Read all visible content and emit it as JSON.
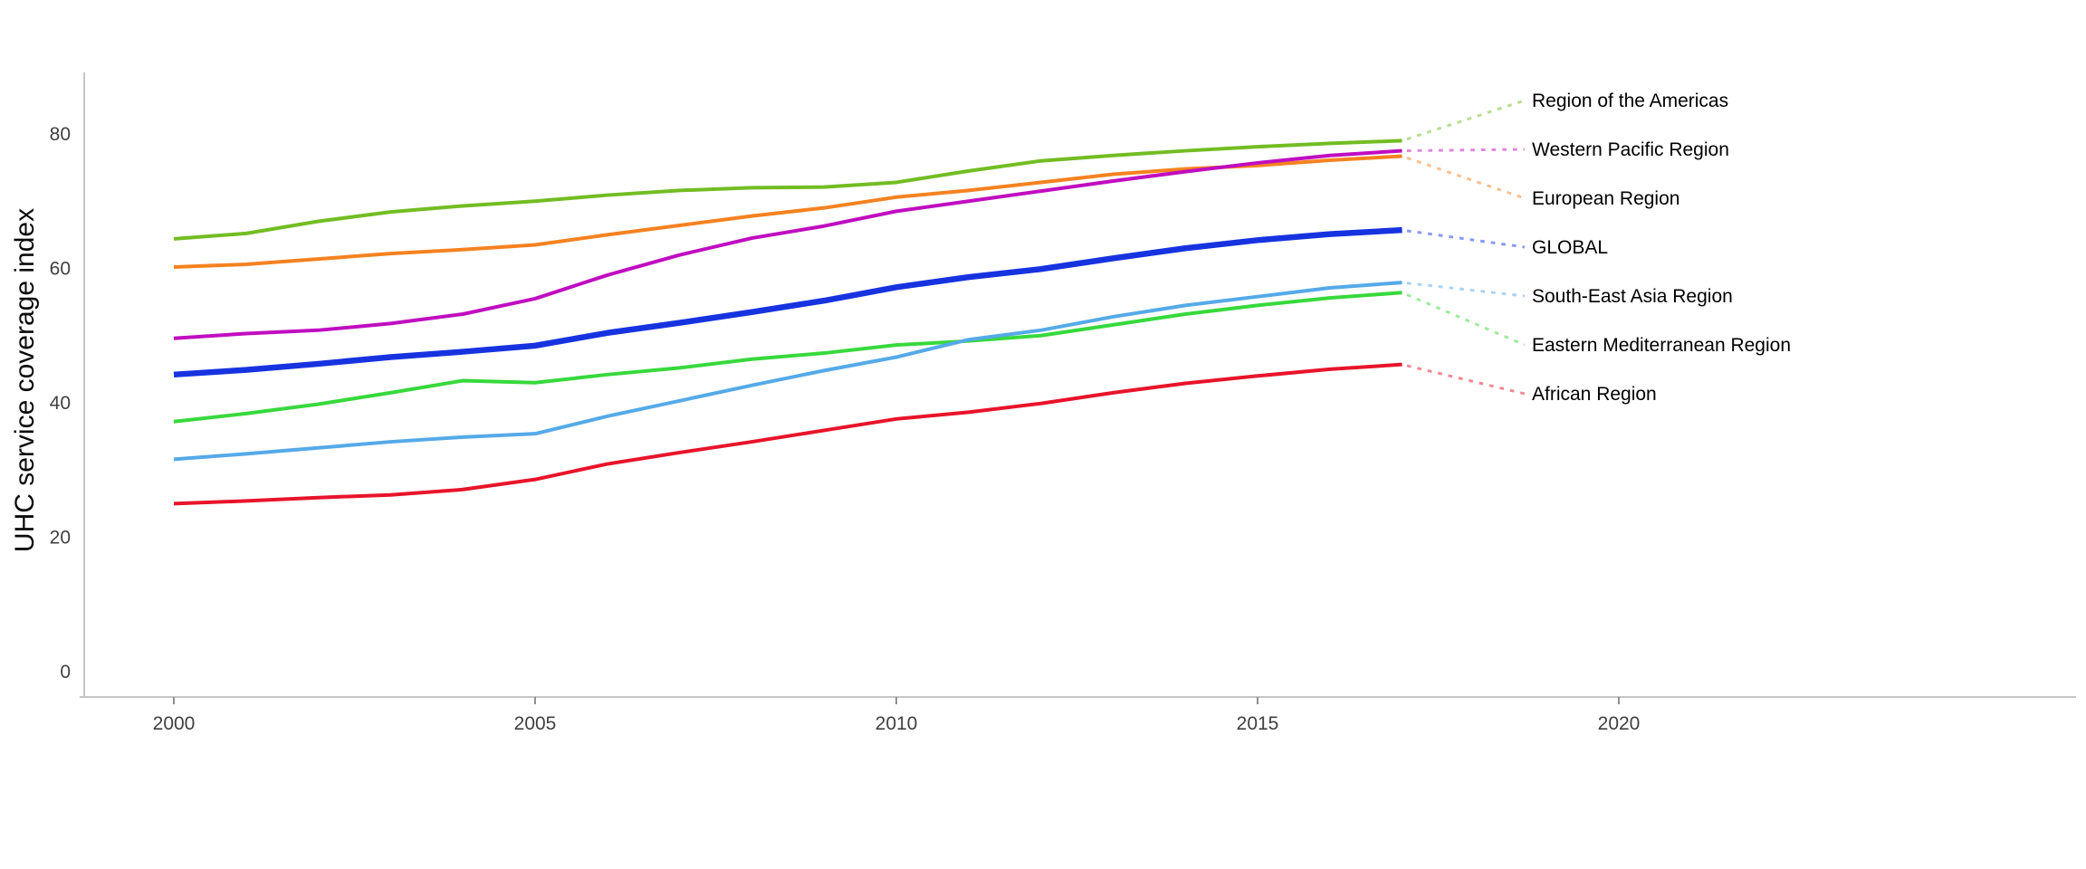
{
  "chart_data": {
    "type": "line",
    "title": "",
    "xlabel": "",
    "ylabel": "UHC service coverage index",
    "x": [
      2000,
      2001,
      2002,
      2003,
      2004,
      2005,
      2006,
      2007,
      2008,
      2009,
      2010,
      2011,
      2012,
      2013,
      2014,
      2015,
      2016,
      2017
    ],
    "x_ticks": [
      2000,
      2005,
      2010,
      2015,
      2020
    ],
    "y_ticks": [
      0,
      20,
      40,
      60,
      80
    ],
    "xlim": [
      1998.7,
      2026.3
    ],
    "ylim": [
      0,
      89
    ],
    "grid": false,
    "legend_position": "right-edge-labels-with-dotted-connectors",
    "colors": {
      "axis": "#c6c6c6",
      "tick": "#8f8f8f",
      "tick_label": "#404040",
      "series_label": "#000000",
      "background": "#ffffff"
    },
    "series": [
      {
        "name": "Region of the Americas",
        "color": "#72BD23",
        "line_width": 4,
        "values": [
          64.4,
          65.2,
          67.0,
          68.4,
          69.3,
          70.0,
          70.9,
          71.6,
          72.0,
          72.1,
          72.8,
          74.5,
          76.0,
          76.8,
          77.5,
          78.1,
          78.6,
          79.0
        ]
      },
      {
        "name": "Western Pacific Region",
        "color": "#C00DC0",
        "line_width": 4,
        "values": [
          49.6,
          50.3,
          50.8,
          51.8,
          53.2,
          55.5,
          59.0,
          62.0,
          64.5,
          66.3,
          68.5,
          70.0,
          71.5,
          73.0,
          74.4,
          75.7,
          76.8,
          77.5
        ]
      },
      {
        "name": "European Region",
        "color": "#F58220",
        "line_width": 4,
        "values": [
          60.2,
          60.6,
          61.4,
          62.2,
          62.8,
          63.5,
          65.0,
          66.4,
          67.8,
          69.0,
          70.6,
          71.6,
          72.8,
          74.0,
          74.8,
          75.3,
          76.1,
          76.7
        ]
      },
      {
        "name": "GLOBAL",
        "color": "#1733E0",
        "line_width": 6.5,
        "values": [
          44.2,
          44.9,
          45.8,
          46.8,
          47.6,
          48.5,
          50.4,
          51.9,
          53.5,
          55.2,
          57.2,
          58.7,
          59.9,
          61.5,
          63.0,
          64.2,
          65.1,
          65.7
        ]
      },
      {
        "name": "South-East Asia Region",
        "color": "#55AAE8",
        "line_width": 4,
        "values": [
          31.6,
          32.4,
          33.3,
          34.2,
          34.9,
          35.4,
          38.0,
          40.3,
          42.6,
          44.8,
          46.8,
          49.4,
          50.8,
          52.8,
          54.5,
          55.8,
          57.1,
          57.9
        ]
      },
      {
        "name": "Eastern Mediterranean Region",
        "color": "#37D93C",
        "line_width": 4,
        "values": [
          37.2,
          38.4,
          39.8,
          41.5,
          43.3,
          43.0,
          44.2,
          45.2,
          46.5,
          47.4,
          48.6,
          49.2,
          50.0,
          51.6,
          53.2,
          54.5,
          55.6,
          56.4
        ]
      },
      {
        "name": "African Region",
        "color": "#E8142A",
        "line_width": 4,
        "values": [
          25.0,
          25.4,
          25.9,
          26.3,
          27.1,
          28.6,
          30.9,
          32.6,
          34.2,
          35.9,
          37.6,
          38.6,
          39.9,
          41.5,
          42.9,
          44.0,
          45.0,
          45.7
        ]
      }
    ]
  }
}
